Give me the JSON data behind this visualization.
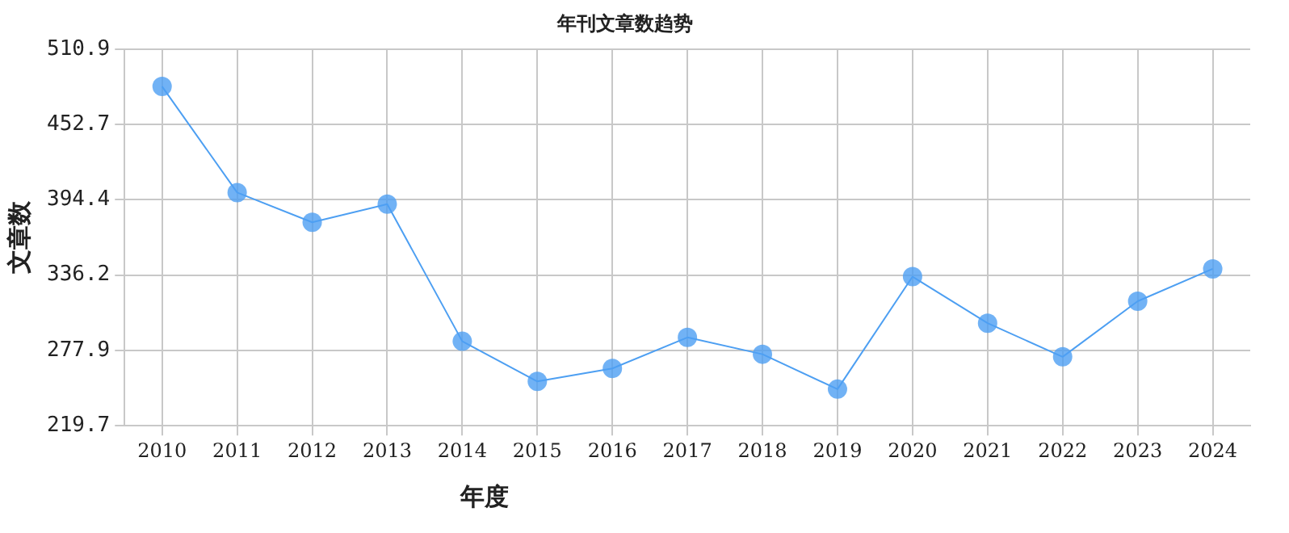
{
  "chart_data": {
    "type": "line",
    "title": "年刊文章数趋势",
    "xlabel": "年度",
    "ylabel": "文章数",
    "categories": [
      "2010",
      "2011",
      "2012",
      "2013",
      "2014",
      "2015",
      "2016",
      "2017",
      "2018",
      "2019",
      "2020",
      "2021",
      "2022",
      "2023",
      "2024"
    ],
    "series": [
      {
        "color": "#4d9ff2",
        "values": [
          482,
          400,
          377,
          391,
          285,
          254,
          264,
          288,
          275,
          248,
          335,
          299,
          273,
          316,
          341
        ]
      }
    ],
    "ylim": [
      219.7,
      510.9
    ],
    "yticks": [
      219.7,
      277.9,
      336.2,
      394.4,
      452.7,
      510.9
    ],
    "grid": true,
    "legend": false,
    "marker": "circle",
    "line_style": "solid"
  }
}
